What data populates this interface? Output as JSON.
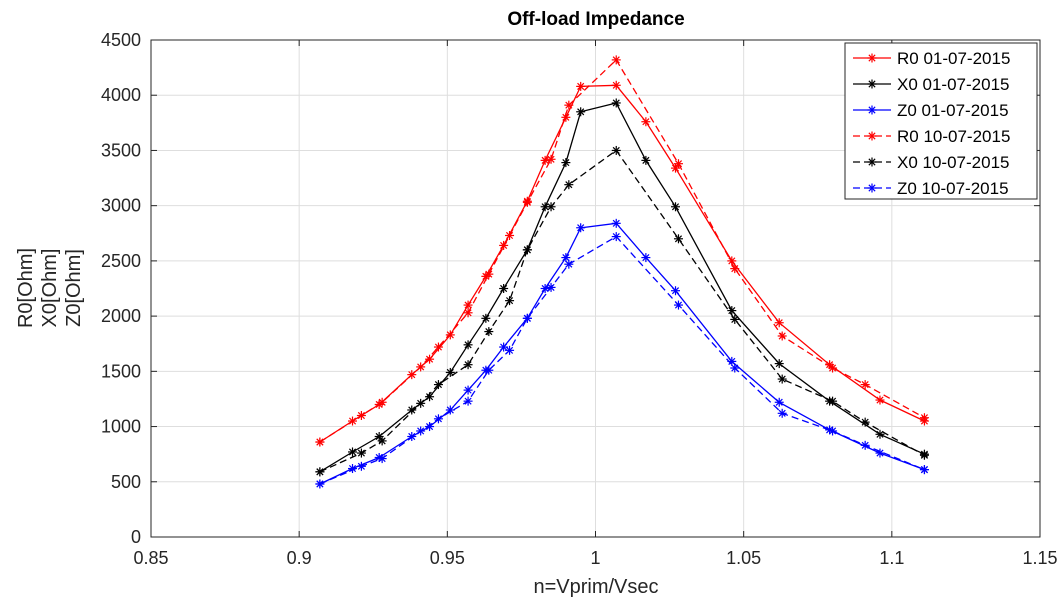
{
  "chart_data": {
    "type": "line",
    "title": "Off-load Impedance",
    "xlabel": "n=Vprim/Vsec",
    "ylabel_lines": [
      "R0[Ohm]",
      "X0[Ohm]",
      "Z0[Ohm]"
    ],
    "xlim": [
      0.85,
      1.15
    ],
    "ylim": [
      0,
      4500
    ],
    "xticks": [
      0.85,
      0.9,
      0.95,
      1,
      1.05,
      1.1,
      1.15
    ],
    "xtick_labels": [
      "0.85",
      "0.9",
      "0.95",
      "1",
      "1.05",
      "1.1",
      "1.15"
    ],
    "yticks": [
      0,
      500,
      1000,
      1500,
      2000,
      2500,
      3000,
      3500,
      4000,
      4500
    ],
    "ytick_labels": [
      "0",
      "500",
      "1000",
      "1500",
      "2000",
      "2500",
      "3000",
      "3500",
      "4000",
      "4500"
    ],
    "grid": true,
    "legend_position": "top-right",
    "series": [
      {
        "name": "R0 01-07-2015",
        "color": "#ff0000",
        "dashed": false,
        "x": [
          0.907,
          0.918,
          0.927,
          0.938,
          0.944,
          0.951,
          0.957,
          0.963,
          0.969,
          0.977,
          0.983,
          0.99,
          0.995,
          1.007,
          1.017,
          1.027,
          1.046,
          1.062,
          1.079,
          1.096,
          1.111
        ],
        "y": [
          860,
          1050,
          1200,
          1470,
          1610,
          1830,
          2100,
          2360,
          2640,
          3040,
          3410,
          3800,
          4080,
          4090,
          3760,
          3340,
          2500,
          1940,
          1560,
          1240,
          1050
        ]
      },
      {
        "name": "X0 01-07-2015",
        "color": "#000000",
        "dashed": false,
        "x": [
          0.907,
          0.918,
          0.927,
          0.938,
          0.944,
          0.951,
          0.957,
          0.963,
          0.969,
          0.977,
          0.983,
          0.99,
          0.995,
          1.007,
          1.017,
          1.027,
          1.046,
          1.062,
          1.079,
          1.096,
          1.111
        ],
        "y": [
          590,
          770,
          910,
          1150,
          1270,
          1490,
          1740,
          1980,
          2250,
          2600,
          2990,
          3390,
          3850,
          3930,
          3410,
          2990,
          2050,
          1570,
          1230,
          930,
          750
        ]
      },
      {
        "name": "Z0 01-07-2015",
        "color": "#0000ff",
        "dashed": false,
        "x": [
          0.907,
          0.918,
          0.927,
          0.938,
          0.944,
          0.951,
          0.957,
          0.963,
          0.969,
          0.977,
          0.983,
          0.99,
          0.995,
          1.007,
          1.017,
          1.027,
          1.046,
          1.062,
          1.079,
          1.096,
          1.111
        ],
        "y": [
          480,
          620,
          720,
          910,
          1000,
          1150,
          1330,
          1510,
          1720,
          1980,
          2250,
          2530,
          2800,
          2840,
          2530,
          2230,
          1590,
          1220,
          970,
          760,
          610
        ]
      },
      {
        "name": "R0 10-07-2015",
        "color": "#ff0000",
        "dashed": true,
        "x": [
          0.907,
          0.921,
          0.928,
          0.941,
          0.947,
          0.957,
          0.964,
          0.971,
          0.977,
          0.985,
          0.991,
          1.007,
          1.028,
          1.047,
          1.063,
          1.08,
          1.091,
          1.111
        ],
        "y": [
          860,
          1100,
          1220,
          1540,
          1720,
          2030,
          2380,
          2730,
          3030,
          3420,
          3910,
          4320,
          3380,
          2430,
          1820,
          1530,
          1380,
          1080
        ]
      },
      {
        "name": "X0 10-07-2015",
        "color": "#000000",
        "dashed": true,
        "x": [
          0.907,
          0.921,
          0.928,
          0.941,
          0.947,
          0.957,
          0.964,
          0.971,
          0.977,
          0.985,
          0.991,
          1.007,
          1.028,
          1.047,
          1.063,
          1.08,
          1.091,
          1.111
        ],
        "y": [
          590,
          760,
          870,
          1210,
          1380,
          1560,
          1860,
          2140,
          2600,
          2990,
          3190,
          3500,
          2700,
          1970,
          1430,
          1230,
          1040,
          740
        ]
      },
      {
        "name": "Z0 10-07-2015",
        "color": "#0000ff",
        "dashed": true,
        "x": [
          0.907,
          0.921,
          0.928,
          0.941,
          0.947,
          0.957,
          0.964,
          0.971,
          0.977,
          0.985,
          0.991,
          1.007,
          1.028,
          1.047,
          1.063,
          1.08,
          1.091,
          1.111
        ],
        "y": [
          480,
          640,
          710,
          960,
          1070,
          1230,
          1510,
          1690,
          1980,
          2260,
          2470,
          2720,
          2100,
          1530,
          1120,
          960,
          830,
          610
        ]
      }
    ]
  }
}
